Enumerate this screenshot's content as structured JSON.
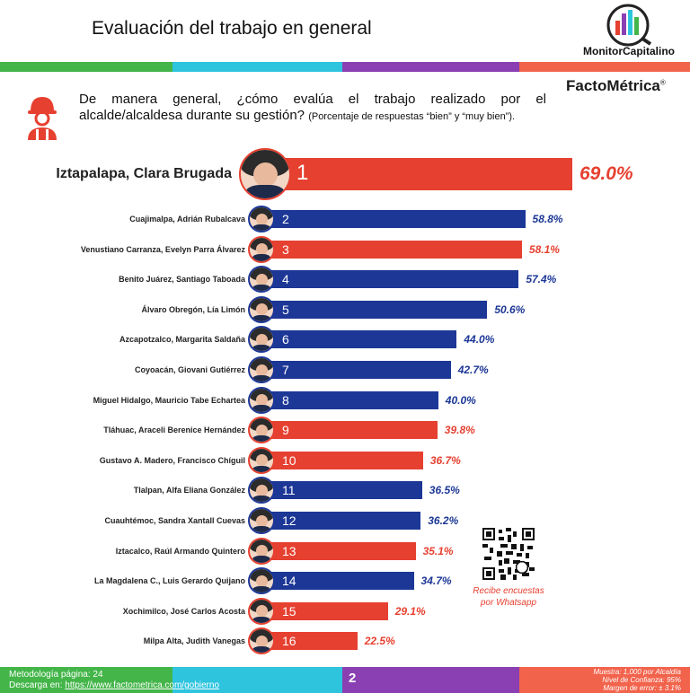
{
  "header": {
    "title": "Evaluación del trabajo en general",
    "brand_monitor": "MonitorCapitalino",
    "brand_facto": "FactoMétrica",
    "brand_facto_mark": "®"
  },
  "question": {
    "text": "De manera general, ¿cómo evalúa el trabajo realizado por el alcalde/alcaldesa durante su gestión?",
    "note": "(Porcentaje de respuestas “bien” y “muy bien”)."
  },
  "colors": {
    "red": "#e64030",
    "blue": "#1c3796",
    "strip_green": "#43b549",
    "strip_cyan": "#2ec4de",
    "strip_purple": "#8a3fb3",
    "strip_coral": "#f2634c"
  },
  "chart_data": {
    "type": "bar",
    "orientation": "horizontal",
    "title": "",
    "xlabel": "",
    "ylabel": "",
    "xlim": [
      0,
      70
    ],
    "grid": false,
    "legend": "none",
    "rows": [
      {
        "rank": "1",
        "label": "Iztapalapa, Clara Brugada",
        "value": 69.0,
        "value_label": "69.0%",
        "color": "red"
      },
      {
        "rank": "2",
        "label": "Cuajimalpa, Adrián Rubalcava",
        "value": 58.8,
        "value_label": "58.8%",
        "color": "blue"
      },
      {
        "rank": "3",
        "label": "Venustiano Carranza, Evelyn Parra Álvarez",
        "value": 58.1,
        "value_label": "58.1%",
        "color": "red"
      },
      {
        "rank": "4",
        "label": "Benito Juárez, Santiago Taboada",
        "value": 57.4,
        "value_label": "57.4%",
        "color": "blue"
      },
      {
        "rank": "5",
        "label": "Álvaro Obregón, Lía Limón",
        "value": 50.6,
        "value_label": "50.6%",
        "color": "blue"
      },
      {
        "rank": "6",
        "label": "Azcapotzalco, Margarita Saldaña",
        "value": 44.0,
        "value_label": "44.0%",
        "color": "blue"
      },
      {
        "rank": "7",
        "label": "Coyoacán, Giovani Gutiérrez",
        "value": 42.7,
        "value_label": "42.7%",
        "color": "blue"
      },
      {
        "rank": "8",
        "label": "Miguel Hidalgo, Mauricio Tabe Echartea",
        "value": 40.0,
        "value_label": "40.0%",
        "color": "blue"
      },
      {
        "rank": "9",
        "label": "Tláhuac, Araceli Berenice Hernández",
        "value": 39.8,
        "value_label": "39.8%",
        "color": "red"
      },
      {
        "rank": "10",
        "label": "Gustavo A. Madero, Francisco Chíguil",
        "value": 36.7,
        "value_label": "36.7%",
        "color": "red"
      },
      {
        "rank": "11",
        "label": "Tlalpan, Alfa Eliana González",
        "value": 36.5,
        "value_label": "36.5%",
        "color": "blue"
      },
      {
        "rank": "12",
        "label": "Cuauhtémoc, Sandra Xantall Cuevas",
        "value": 36.2,
        "value_label": "36.2%",
        "color": "blue"
      },
      {
        "rank": "13",
        "label": "Iztacalco, Raúl Armando Quintero",
        "value": 35.1,
        "value_label": "35.1%",
        "color": "red"
      },
      {
        "rank": "14",
        "label": "La Magdalena C., Luis Gerardo Quijano",
        "value": 34.7,
        "value_label": "34.7%",
        "color": "blue"
      },
      {
        "rank": "15",
        "label": "Xochimilco, José Carlos Acosta",
        "value": 29.1,
        "value_label": "29.1%",
        "color": "red"
      },
      {
        "rank": "16",
        "label": "Milpa Alta, Judith Vanegas",
        "value": 22.5,
        "value_label": "22.5%",
        "color": "red"
      }
    ]
  },
  "qr": {
    "caption_line1": "Recibe encuestas",
    "caption_line2": "por Whatsapp"
  },
  "footer": {
    "methodology": "Metodología página: 24",
    "download_label": "Descarga en:",
    "download_url": "https://www.factometrica.com/gobierno",
    "page_number": "2",
    "sample": "Muestra: 1,000 por Alcaldía",
    "confidence": "Nivel de Confianza: 95%",
    "margin": "Margen de error: ± 3.1%"
  }
}
